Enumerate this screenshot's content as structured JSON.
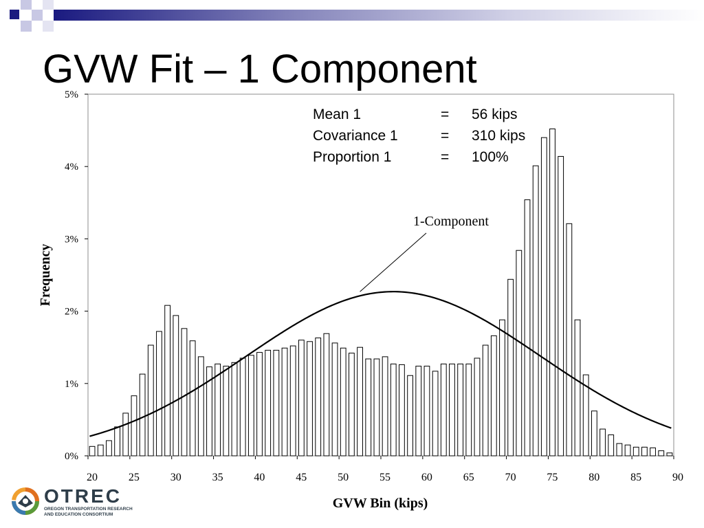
{
  "slide": {
    "title": "GVW Fit – 1 Component"
  },
  "stats": [
    {
      "label": "Mean 1",
      "eq": "=",
      "value": "56 kips"
    },
    {
      "label": "Covariance 1",
      "eq": "=",
      "value": "310 kips"
    },
    {
      "label": "Proportion 1",
      "eq": "=",
      "value": "100%"
    }
  ],
  "logo": {
    "name": "OTREC",
    "subtitle_line1": "OREGON TRANSPORTATION RESEARCH",
    "subtitle_line2": "AND EDUCATION CONSORTIUM"
  },
  "colors": {
    "deco_dark": "#1a1a80",
    "deco_mid": "#9a9ac8",
    "deco_light": "#d8d8ec",
    "bar_fill": "#ffffff",
    "bar_stroke": "#000000",
    "curve": "#000000",
    "logo_text": "#2e3d49"
  },
  "chart_data": {
    "type": "bar",
    "xlabel": "GVW Bin (kips)",
    "ylabel": "Frequency",
    "xlim": [
      20,
      90
    ],
    "ylim": [
      0,
      5
    ],
    "x_ticks": [
      20,
      25,
      30,
      35,
      40,
      45,
      50,
      55,
      60,
      65,
      70,
      75,
      80,
      85,
      90
    ],
    "y_ticks": [
      "0%",
      "1%",
      "2%",
      "3%",
      "4%",
      "5%"
    ],
    "y_unit": "percent",
    "bins": [
      20,
      21,
      22,
      23,
      24,
      25,
      26,
      27,
      28,
      29,
      30,
      31,
      32,
      33,
      34,
      35,
      36,
      37,
      38,
      39,
      40,
      41,
      42,
      43,
      44,
      45,
      46,
      47,
      48,
      49,
      50,
      51,
      52,
      53,
      54,
      55,
      56,
      57,
      58,
      59,
      60,
      61,
      62,
      63,
      64,
      65,
      66,
      67,
      68,
      69,
      70,
      71,
      72,
      73,
      74,
      75,
      76,
      77,
      78,
      79,
      80,
      81,
      82,
      83,
      84,
      85,
      86,
      87,
      88,
      89
    ],
    "values": [
      0.13,
      0.15,
      0.21,
      0.4,
      0.59,
      0.83,
      1.13,
      1.53,
      1.72,
      2.08,
      1.94,
      1.76,
      1.59,
      1.37,
      1.23,
      1.27,
      1.24,
      1.29,
      1.35,
      1.39,
      1.43,
      1.46,
      1.46,
      1.49,
      1.52,
      1.6,
      1.58,
      1.63,
      1.69,
      1.56,
      1.49,
      1.42,
      1.5,
      1.34,
      1.34,
      1.37,
      1.27,
      1.26,
      1.11,
      1.24,
      1.24,
      1.17,
      1.27,
      1.27,
      1.27,
      1.27,
      1.35,
      1.53,
      1.66,
      1.88,
      2.44,
      2.84,
      3.54,
      4.01,
      4.4,
      4.52,
      4.14,
      3.21,
      1.88,
      1.12,
      0.62,
      0.37,
      0.29,
      0.17,
      0.15,
      0.12,
      0.12,
      0.11,
      0.07,
      0.04
    ],
    "series": [
      {
        "name": "1-Component",
        "type": "line",
        "mean": 56.5,
        "peak": 2.27,
        "sd": 17.6
      }
    ],
    "annotations": [
      {
        "text": "1-Component",
        "points_to_x": 52.5
      }
    ]
  }
}
